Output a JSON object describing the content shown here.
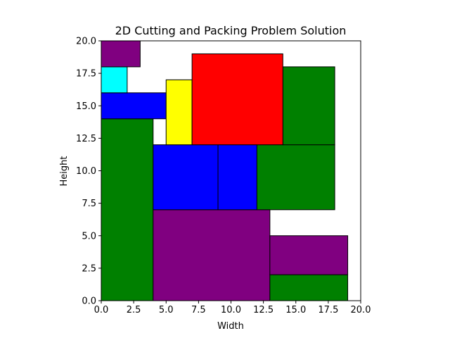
{
  "chart_data": {
    "type": "rectangles",
    "title": "2D Cutting and Packing Problem Solution",
    "xlabel": "Width",
    "ylabel": "Height",
    "xlim": [
      0,
      20
    ],
    "ylim": [
      0,
      20
    ],
    "xticks": [
      "0.0",
      "2.5",
      "5.0",
      "7.5",
      "10.0",
      "12.5",
      "15.0",
      "17.5",
      "20.0"
    ],
    "yticks": [
      "0.0",
      "2.5",
      "5.0",
      "7.5",
      "10.0",
      "12.5",
      "15.0",
      "17.5",
      "20.0"
    ],
    "grid": false,
    "edge_color": "#000000",
    "rectangles": [
      {
        "x": 0,
        "y": 0,
        "w": 4,
        "h": 14,
        "color": "#008000"
      },
      {
        "x": 4,
        "y": 0,
        "w": 9,
        "h": 7,
        "color": "#800080"
      },
      {
        "x": 13,
        "y": 0,
        "w": 6,
        "h": 2,
        "color": "#008000"
      },
      {
        "x": 13,
        "y": 2,
        "w": 6,
        "h": 3,
        "color": "#800080"
      },
      {
        "x": 4,
        "y": 7,
        "w": 5,
        "h": 5,
        "color": "#0000ff"
      },
      {
        "x": 9,
        "y": 7,
        "w": 3,
        "h": 5,
        "color": "#0000ff"
      },
      {
        "x": 12,
        "y": 7,
        "w": 6,
        "h": 5,
        "color": "#008000"
      },
      {
        "x": 12,
        "y": 12,
        "w": 2,
        "h": 0,
        "color": "#008000"
      },
      {
        "x": 14,
        "y": 12,
        "w": 4,
        "h": 6,
        "color": "#008000"
      },
      {
        "x": 0,
        "y": 14,
        "w": 5,
        "h": 2,
        "color": "#0000ff"
      },
      {
        "x": 5,
        "y": 12,
        "w": 2,
        "h": 5,
        "color": "#ffff00"
      },
      {
        "x": 7,
        "y": 12,
        "w": 7,
        "h": 7,
        "color": "#ff0000"
      },
      {
        "x": 0,
        "y": 16,
        "w": 2,
        "h": 2,
        "color": "#00ffff"
      },
      {
        "x": 0,
        "y": 18,
        "w": 3,
        "h": 2,
        "color": "#800080"
      }
    ]
  }
}
